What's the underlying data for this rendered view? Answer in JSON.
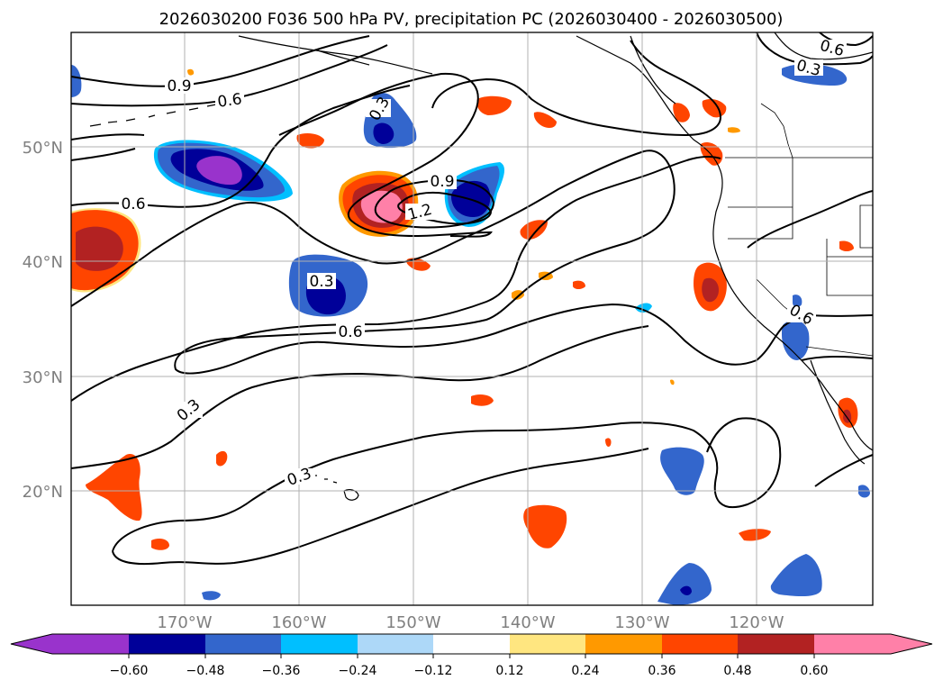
{
  "title": "2026030200 F036 500 hPa PV, precipitation PC (2026030400 - 2026030500)",
  "map": {
    "lat_ticks": [
      "50°N",
      "40°N",
      "30°N",
      "20°N"
    ],
    "lon_ticks": [
      "170°W",
      "160°W",
      "150°W",
      "140°W",
      "130°W",
      "120°W"
    ],
    "contour_labels": [
      "0.9",
      "0.6",
      "0.3",
      "0.6",
      "0.9",
      "1.2",
      "0.3",
      "0.6",
      "0.3",
      "0.3",
      "0.6",
      "0.3",
      "0.6"
    ],
    "contour_color": "#000000",
    "grid": true
  },
  "colorbar": {
    "tick_labels": [
      "−0.60",
      "−0.48",
      "−0.36",
      "−0.24",
      "−0.12",
      "0.12",
      "0.24",
      "0.36",
      "0.48",
      "0.60"
    ],
    "colors": [
      "#9933cc",
      "#000099",
      "#3366cc",
      "#00bfff",
      "#add8f8",
      "#ffffff",
      "#ffe680",
      "#ff9900",
      "#ff4500",
      "#b22222",
      "#ff80a8"
    ],
    "extend": "both"
  },
  "palette": {
    "purple": "#9933cc",
    "navy": "#000099",
    "blue": "#3366cc",
    "cyan": "#00bfff",
    "lightblue": "#add8f8",
    "yellow": "#ffe680",
    "orange": "#ff9900",
    "redorange": "#ff4500",
    "darkred": "#b22222",
    "pink": "#ff80a8"
  }
}
